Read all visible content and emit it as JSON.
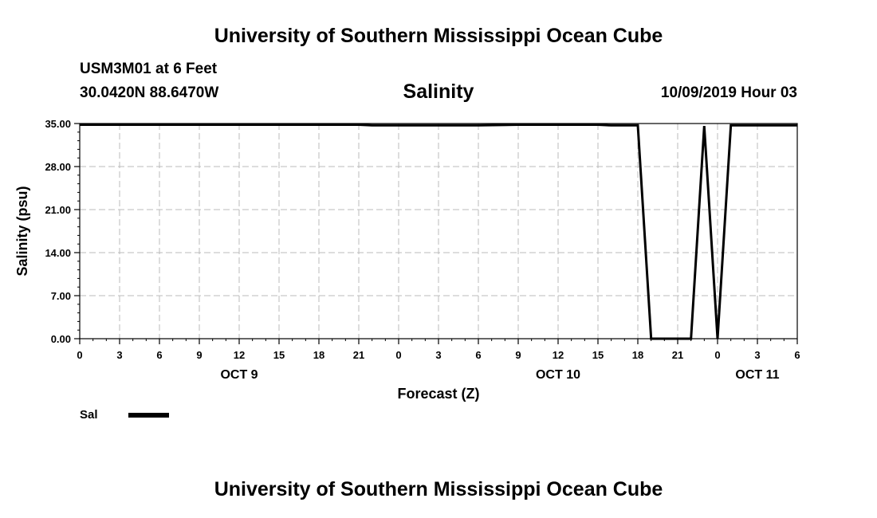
{
  "header": {
    "title": "University of Southern Mississippi Ocean Cube",
    "station": "USM3M01 at 6 Feet",
    "coords": "30.0420N 88.6470W",
    "datetime": "10/09/2019 Hour 03"
  },
  "footer": {
    "title": "University of Southern Mississippi Ocean Cube"
  },
  "chart_data": {
    "type": "line",
    "title": "Salinity",
    "xlabel": "Forecast (Z)",
    "ylabel": "Salinity (psu)",
    "ylim": [
      0,
      35
    ],
    "xlim": [
      0,
      54
    ],
    "grid": true,
    "line_color": "#000000",
    "grid_color": "#bbbbbb",
    "yticks": [
      "0.00",
      "7.00",
      "14.00",
      "21.00",
      "28.00",
      "35.00"
    ],
    "xticks": [
      "0",
      "3",
      "6",
      "9",
      "12",
      "15",
      "18",
      "21",
      "0",
      "3",
      "6",
      "9",
      "12",
      "15",
      "18",
      "21",
      "0",
      "3",
      "6"
    ],
    "day_labels": [
      {
        "label": "OCT 9",
        "hour": 12
      },
      {
        "label": "OCT 10",
        "hour": 36
      },
      {
        "label": "OCT 11",
        "hour": 51
      }
    ],
    "legend": {
      "position": "bottom-left",
      "entries": [
        "Sal"
      ]
    },
    "series": [
      {
        "name": "Sal",
        "x_hours": [
          0,
          3,
          6,
          9,
          12,
          15,
          18,
          21,
          22,
          24,
          27,
          30,
          33,
          36,
          39,
          40,
          42,
          43,
          44,
          45,
          46,
          47,
          48,
          49,
          51,
          54
        ],
        "values": [
          34.8,
          34.8,
          34.8,
          34.8,
          34.8,
          34.8,
          34.8,
          34.8,
          34.7,
          34.7,
          34.7,
          34.7,
          34.8,
          34.8,
          34.8,
          34.7,
          34.7,
          0,
          0,
          0,
          0,
          34.6,
          0,
          34.7,
          34.7,
          34.7
        ]
      }
    ]
  }
}
